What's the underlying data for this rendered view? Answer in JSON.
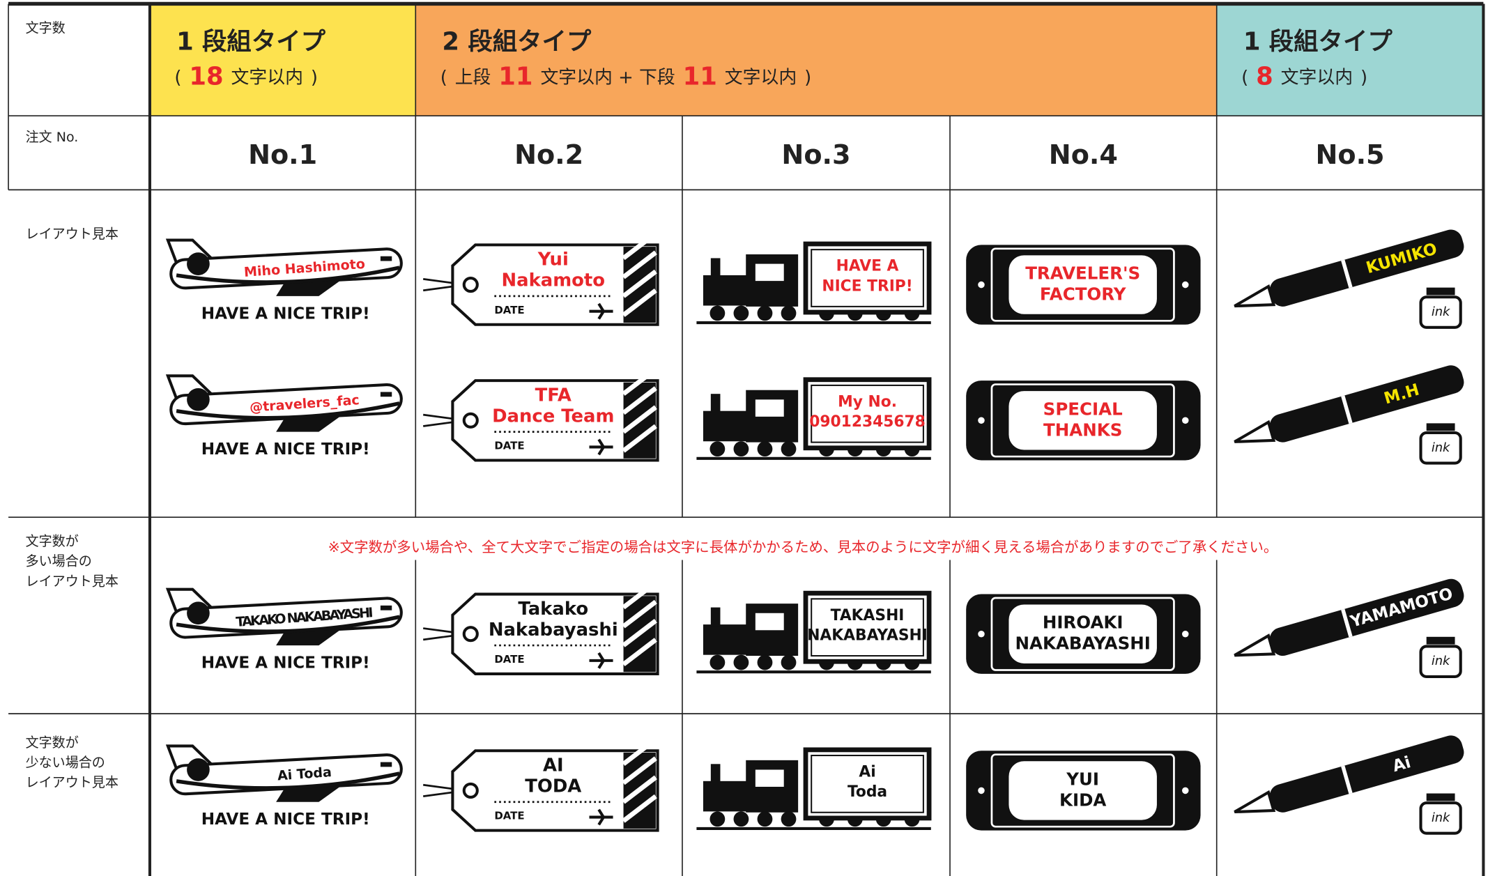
{
  "row_labels": {
    "count": [
      "文字数"
    ],
    "order": [
      "注文 No."
    ]
  },
  "groups": [
    {
      "title": "1 段組タイプ",
      "note": [
        "(",
        "18",
        "文字以内",
        ")"
      ],
      "color": "#fde24f"
    },
    {
      "title": "2 段組タイプ",
      "note": [
        "(",
        "上段",
        "11",
        "文字以内 + 下段",
        "11",
        "文字以内",
        ")"
      ],
      "color": "#f8a65a"
    },
    {
      "title": "1 段組タイプ",
      "note": [
        "(",
        "8",
        "文字以内",
        ")"
      ],
      "color": "#9dd6d3"
    }
  ],
  "order_numbers": [
    "No.1",
    "No.2",
    "No.3",
    "No.4",
    "No.5"
  ],
  "plane_caption": "HAVE A NICE TRIP!",
  "tag_date": "DATE",
  "ink_label": "ink",
  "sections": [
    {
      "label": [
        "レイアウト見本"
      ],
      "text_color": "#e8262b",
      "pen_text_color": "#f5e400",
      "rows": [
        {
          "plane": "Miho Hashimoto",
          "tag": [
            "Yui",
            "Nakamoto"
          ],
          "train": [
            "HAVE A",
            "NICE TRIP!"
          ],
          "plate": [
            "TRAVELER'S",
            "FACTORY"
          ],
          "pen": "KUMIKO"
        },
        {
          "plane": "@travelers_fac",
          "tag": [
            "TFA",
            "Dance Team"
          ],
          "train": [
            "My No.",
            "09012345678"
          ],
          "plate": [
            "SPECIAL",
            "THANKS"
          ],
          "pen": "M.H"
        }
      ]
    },
    {
      "label": [
        "文字数が",
        "多い場合の",
        "レイアウト見本"
      ],
      "text_color": "#111111",
      "pen_text_color": "#ffffff",
      "note": "※文字数が多い場合や、全て大文字でご指定の場合は文字に長体がかかるため、見本のように文字が細く見える場合がありますのでご了承ください。",
      "rows": [
        {
          "plane": "TAKAKO NAKABAYASHI",
          "tag": [
            "Takako",
            "Nakabayashi"
          ],
          "train": [
            "TAKASHI",
            "NAKABAYASHI"
          ],
          "plate": [
            "HIROAKI",
            "NAKABAYASHI"
          ],
          "pen": "YAMAMOTO"
        }
      ]
    },
    {
      "label": [
        "文字数が",
        "少ない場合の",
        "レイアウト見本"
      ],
      "text_color": "#111111",
      "pen_text_color": "#ffffff",
      "rows": [
        {
          "plane": "Ai Toda",
          "tag": [
            "AI",
            "TODA"
          ],
          "train": [
            "Ai",
            "Toda"
          ],
          "plate": [
            "YUI",
            "KIDA"
          ],
          "pen": "Ai"
        }
      ]
    }
  ]
}
